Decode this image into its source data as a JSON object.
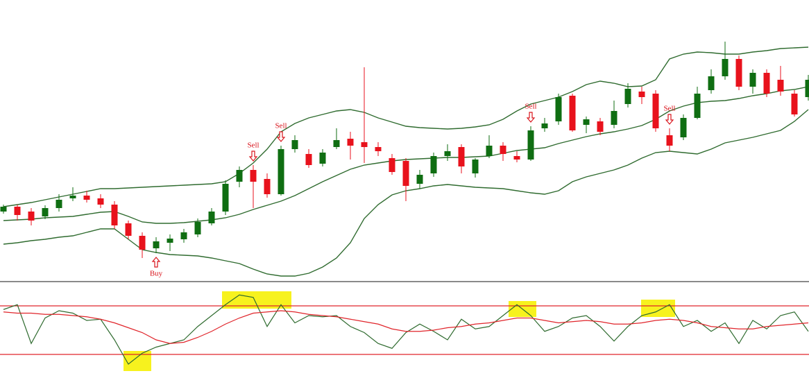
{
  "chart_data": [
    {
      "type": "candlestick",
      "ylim": [
        0,
        405
      ],
      "up_color": "#0f6e12",
      "down_color": "#e8121c",
      "candles": [
        [
          100,
          110,
          97,
          107
        ],
        [
          107,
          110,
          87,
          95
        ],
        [
          100,
          105,
          80,
          87
        ],
        [
          93,
          109,
          89,
          105
        ],
        [
          105,
          125,
          100,
          117
        ],
        [
          119,
          135,
          115,
          123
        ],
        [
          123,
          130,
          113,
          117
        ],
        [
          119,
          125,
          105,
          110
        ],
        [
          110,
          115,
          75,
          80
        ],
        [
          83,
          87,
          60,
          65
        ],
        [
          65,
          70,
          33,
          45
        ],
        [
          47,
          63,
          40,
          57
        ],
        [
          55,
          67,
          43,
          61
        ],
        [
          60,
          75,
          55,
          70
        ],
        [
          67,
          90,
          63,
          85
        ],
        [
          83,
          105,
          80,
          100
        ],
        [
          100,
          145,
          95,
          140
        ],
        [
          143,
          165,
          135,
          160
        ],
        [
          160,
          167,
          105,
          143
        ],
        [
          147,
          155,
          120,
          125
        ],
        [
          125,
          195,
          123,
          190
        ],
        [
          190,
          210,
          185,
          203
        ],
        [
          183,
          190,
          163,
          167
        ],
        [
          169,
          190,
          165,
          185
        ],
        [
          193,
          220,
          190,
          203
        ],
        [
          205,
          215,
          175,
          195
        ],
        [
          200,
          308,
          170,
          193
        ],
        [
          193,
          200,
          180,
          187
        ],
        [
          177,
          183,
          153,
          157
        ],
        [
          173,
          177,
          115,
          137
        ],
        [
          140,
          160,
          133,
          153
        ],
        [
          155,
          185,
          150,
          180
        ],
        [
          180,
          197,
          173,
          187
        ],
        [
          193,
          197,
          155,
          165
        ],
        [
          155,
          177,
          149,
          175
        ],
        [
          180,
          210,
          177,
          195
        ],
        [
          195,
          200,
          173,
          183
        ],
        [
          180,
          187,
          171,
          175
        ],
        [
          175,
          223,
          173,
          217
        ],
        [
          220,
          235,
          215,
          227
        ],
        [
          230,
          270,
          225,
          265
        ],
        [
          267,
          270,
          215,
          217
        ],
        [
          225,
          237,
          213,
          233
        ],
        [
          230,
          235,
          210,
          215
        ],
        [
          225,
          260,
          220,
          245
        ],
        [
          255,
          285,
          250,
          277
        ],
        [
          273,
          280,
          255,
          265
        ],
        [
          270,
          275,
          215,
          220
        ],
        [
          210,
          220,
          187,
          195
        ],
        [
          207,
          240,
          203,
          235
        ],
        [
          235,
          280,
          233,
          270
        ],
        [
          275,
          305,
          270,
          295
        ],
        [
          295,
          345,
          290,
          320
        ],
        [
          320,
          325,
          275,
          280
        ],
        [
          280,
          305,
          270,
          300
        ],
        [
          300,
          305,
          265,
          270
        ],
        [
          290,
          310,
          267,
          273
        ],
        [
          270,
          275,
          237,
          240
        ],
        [
          265,
          297,
          260,
          290
        ]
      ],
      "bands": {
        "color": "#2f6b2f",
        "upper": [
          107,
          110,
          113,
          117,
          121,
          125,
          129,
          133,
          133,
          134,
          135,
          136,
          137,
          138,
          139,
          140,
          143,
          155,
          170,
          190,
          215,
          227,
          235,
          240,
          245,
          247,
          243,
          235,
          229,
          223,
          221,
          220,
          219,
          220,
          222,
          225,
          233,
          245,
          255,
          260,
          265,
          273,
          283,
          288,
          285,
          280,
          281,
          290,
          320,
          327,
          330,
          329,
          327,
          327,
          330,
          332,
          335,
          336,
          337
        ],
        "middle": [
          87,
          88,
          89,
          91,
          92,
          93,
          96,
          99,
          100,
          93,
          85,
          83,
          83,
          84,
          86,
          88,
          91,
          96,
          103,
          109,
          115,
          123,
          133,
          143,
          152,
          161,
          167,
          170,
          173,
          175,
          176,
          177,
          178,
          178,
          179,
          180,
          184,
          188,
          190,
          192,
          198,
          203,
          208,
          212,
          215,
          219,
          224,
          233,
          245,
          252,
          257,
          259,
          260,
          263,
          267,
          270,
          274,
          276,
          280
        ],
        "lower": [
          53,
          55,
          58,
          60,
          63,
          65,
          70,
          75,
          75,
          60,
          45,
          41,
          38,
          37,
          36,
          33,
          29,
          25,
          17,
          10,
          7,
          7,
          11,
          20,
          33,
          55,
          90,
          110,
          124,
          130,
          133,
          137,
          139,
          137,
          135,
          134,
          133,
          130,
          127,
          125,
          130,
          143,
          150,
          155,
          160,
          167,
          177,
          185,
          187,
          185,
          183,
          190,
          199,
          203,
          207,
          212,
          217,
          230,
          247
        ]
      },
      "signals": [
        {
          "label": "Buy",
          "index": 11,
          "arrow": "up"
        },
        {
          "label": "Sell",
          "index": 18,
          "arrow": "down"
        },
        {
          "label": "Sell",
          "index": 20,
          "arrow": "down"
        },
        {
          "label": "Sell",
          "index": 38,
          "arrow": "down"
        },
        {
          "label": "Sell",
          "index": 48,
          "arrow": "down"
        }
      ],
      "signal_color": "#d9141c"
    },
    {
      "type": "line",
      "ylim": [
        10,
        90
      ],
      "levels": [
        30,
        70
      ],
      "level_color": "#e0242a",
      "series": [
        {
          "color": "#2f6b2f",
          "values": [
            67,
            71,
            39,
            60,
            66,
            64,
            58,
            59,
            42,
            22,
            31,
            36,
            39,
            42,
            53,
            62,
            71,
            79,
            77,
            53,
            71,
            56,
            62,
            61,
            62,
            53,
            48,
            39,
            35,
            48,
            55,
            49,
            42,
            59,
            51,
            53,
            62,
            71,
            62,
            49,
            53,
            60,
            62,
            53,
            41,
            53,
            62,
            65,
            71,
            53,
            58,
            49,
            56,
            39,
            58,
            51,
            62,
            65,
            49
          ]
        },
        {
          "color": "#e0242a",
          "values": [
            65,
            64,
            64,
            63,
            63,
            62,
            61,
            59,
            56,
            52,
            48,
            42,
            39,
            40,
            44,
            49,
            55,
            60,
            64,
            65,
            66,
            65,
            63,
            62,
            61,
            59,
            57,
            55,
            51,
            49,
            49,
            50,
            52,
            53,
            55,
            56,
            58,
            60,
            60,
            58,
            56,
            57,
            58,
            57,
            55,
            55,
            56,
            58,
            59,
            58,
            56,
            53,
            52,
            51,
            51,
            53,
            54,
            55,
            56
          ]
        }
      ]
    }
  ]
}
